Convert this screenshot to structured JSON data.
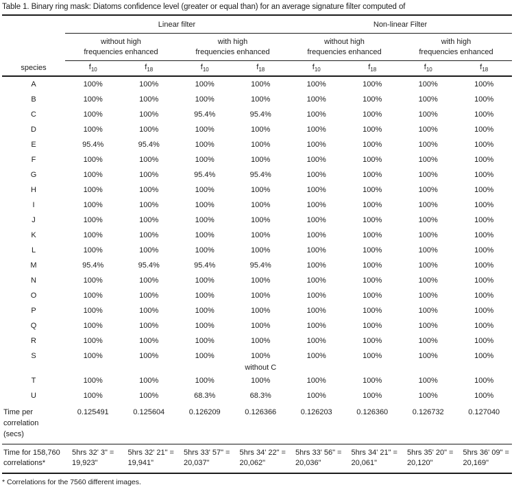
{
  "title": "Table 1. Binary ring mask: Diatoms confidence level (greater or equal than) for an average signature filter computed of",
  "footnote": "* Correlations for the 7560 different images.",
  "header": {
    "species_label": "species",
    "groups": [
      {
        "label": "Linear filter"
      },
      {
        "label": "Non-linear Filter"
      }
    ],
    "subgroups": [
      {
        "lines": [
          "without high",
          "frequencies enhanced"
        ]
      },
      {
        "lines": [
          "with high",
          "frequencies enhanced"
        ]
      },
      {
        "lines": [
          "without high",
          "frequencies enhanced"
        ]
      },
      {
        "lines": [
          "with high",
          "frequencies enhanced"
        ]
      }
    ],
    "f_base": "f",
    "f_subs": [
      "10",
      "18",
      "10",
      "18",
      "10",
      "18",
      "10",
      "18"
    ]
  },
  "rows": [
    {
      "species": "A",
      "values": [
        "100%",
        "100%",
        "100%",
        "100%",
        "100%",
        "100%",
        "100%",
        "100%"
      ]
    },
    {
      "species": "B",
      "values": [
        "100%",
        "100%",
        "100%",
        "100%",
        "100%",
        "100%",
        "100%",
        "100%"
      ]
    },
    {
      "species": "C",
      "values": [
        "100%",
        "100%",
        "95.4%",
        "95.4%",
        "100%",
        "100%",
        "100%",
        "100%"
      ]
    },
    {
      "species": "D",
      "values": [
        "100%",
        "100%",
        "100%",
        "100%",
        "100%",
        "100%",
        "100%",
        "100%"
      ]
    },
    {
      "species": "E",
      "values": [
        "95.4%",
        "95.4%",
        "100%",
        "100%",
        "100%",
        "100%",
        "100%",
        "100%"
      ]
    },
    {
      "species": "F",
      "values": [
        "100%",
        "100%",
        "100%",
        "100%",
        "100%",
        "100%",
        "100%",
        "100%"
      ]
    },
    {
      "species": "G",
      "values": [
        "100%",
        "100%",
        "95.4%",
        "95.4%",
        "100%",
        "100%",
        "100%",
        "100%"
      ]
    },
    {
      "species": "H",
      "values": [
        "100%",
        "100%",
        "100%",
        "100%",
        "100%",
        "100%",
        "100%",
        "100%"
      ]
    },
    {
      "species": "I",
      "values": [
        "100%",
        "100%",
        "100%",
        "100%",
        "100%",
        "100%",
        "100%",
        "100%"
      ]
    },
    {
      "species": "J",
      "values": [
        "100%",
        "100%",
        "100%",
        "100%",
        "100%",
        "100%",
        "100%",
        "100%"
      ]
    },
    {
      "species": "K",
      "values": [
        "100%",
        "100%",
        "100%",
        "100%",
        "100%",
        "100%",
        "100%",
        "100%"
      ]
    },
    {
      "species": "L",
      "values": [
        "100%",
        "100%",
        "100%",
        "100%",
        "100%",
        "100%",
        "100%",
        "100%"
      ]
    },
    {
      "species": "M",
      "values": [
        "95.4%",
        "95.4%",
        "95.4%",
        "95.4%",
        "100%",
        "100%",
        "100%",
        "100%"
      ]
    },
    {
      "species": "N",
      "values": [
        "100%",
        "100%",
        "100%",
        "100%",
        "100%",
        "100%",
        "100%",
        "100%"
      ]
    },
    {
      "species": "O",
      "values": [
        "100%",
        "100%",
        "100%",
        "100%",
        "100%",
        "100%",
        "100%",
        "100%"
      ]
    },
    {
      "species": "P",
      "values": [
        "100%",
        "100%",
        "100%",
        "100%",
        "100%",
        "100%",
        "100%",
        "100%"
      ]
    },
    {
      "species": "Q",
      "values": [
        "100%",
        "100%",
        "100%",
        "100%",
        "100%",
        "100%",
        "100%",
        "100%"
      ]
    },
    {
      "species": "R",
      "values": [
        "100%",
        "100%",
        "100%",
        "100%",
        "100%",
        "100%",
        "100%",
        "100%"
      ]
    },
    {
      "species": "S",
      "values": [
        "100%",
        "100%",
        "100%",
        "100%",
        "100%",
        "100%",
        "100%",
        "100%"
      ],
      "note_col": 3,
      "note_text": "without C"
    },
    {
      "species": "T",
      "values": [
        "100%",
        "100%",
        "100%",
        "100%",
        "100%",
        "100%",
        "100%",
        "100%"
      ]
    },
    {
      "species": "U",
      "values": [
        "100%",
        "100%",
        "68.3%",
        "68.3%",
        "100%",
        "100%",
        "100%",
        "100%"
      ]
    }
  ],
  "time_per_correlation": {
    "label_lines": [
      "Time per",
      "correlation",
      "(secs)"
    ],
    "values": [
      "0.125491",
      "0.125604",
      "0.126209",
      "0.126366",
      "0.126203",
      "0.126360",
      "0.126732",
      "0.127040"
    ]
  },
  "time_total": {
    "label_lines": [
      "Time for 158,760",
      "correlations*"
    ],
    "values": [
      {
        "line1": "5hrs 32' 3\" =",
        "line2": "19,923\""
      },
      {
        "line1": "5hrs 32' 21\" =",
        "line2": "19,941\""
      },
      {
        "line1": "5hrs 33' 57\" =",
        "line2": "20,037\""
      },
      {
        "line1": "5hrs 34' 22\" =",
        "line2": "20,062\""
      },
      {
        "line1": "5hrs 33' 56\" =",
        "line2": "20,036\""
      },
      {
        "line1": "5hrs 34' 21\" =",
        "line2": "20,061\""
      },
      {
        "line1": "5hrs 35' 20\" =",
        "line2": "20,120\""
      },
      {
        "line1": "5hrs 36' 09\" =",
        "line2": "20,169\""
      }
    ]
  }
}
